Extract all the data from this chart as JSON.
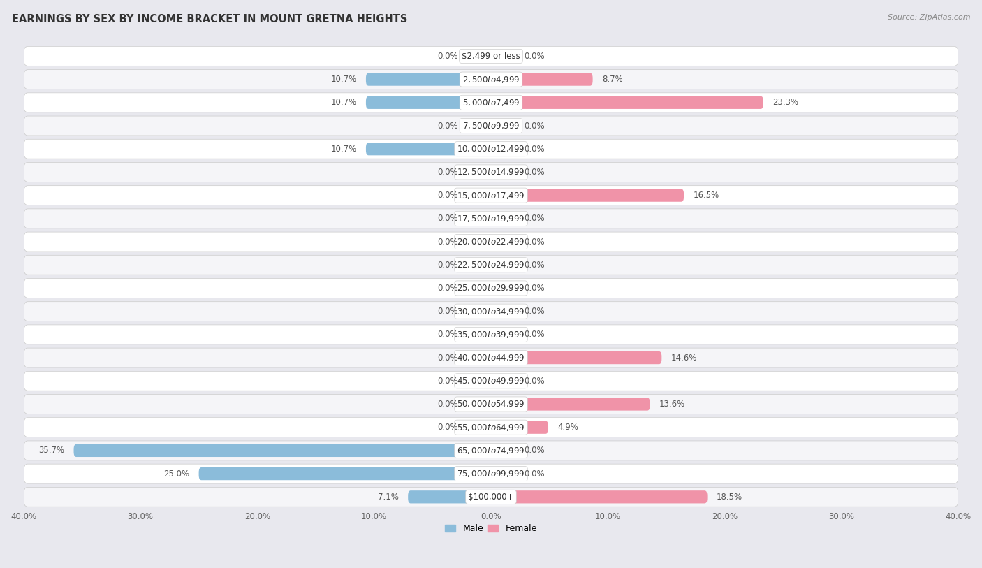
{
  "title": "EARNINGS BY SEX BY INCOME BRACKET IN MOUNT GRETNA HEIGHTS",
  "source": "Source: ZipAtlas.com",
  "categories": [
    "$2,499 or less",
    "$2,500 to $4,999",
    "$5,000 to $7,499",
    "$7,500 to $9,999",
    "$10,000 to $12,499",
    "$12,500 to $14,999",
    "$15,000 to $17,499",
    "$17,500 to $19,999",
    "$20,000 to $22,499",
    "$22,500 to $24,999",
    "$25,000 to $29,999",
    "$30,000 to $34,999",
    "$35,000 to $39,999",
    "$40,000 to $44,999",
    "$45,000 to $49,999",
    "$50,000 to $54,999",
    "$55,000 to $64,999",
    "$65,000 to $74,999",
    "$75,000 to $99,999",
    "$100,000+"
  ],
  "male_values": [
    0.0,
    10.7,
    10.7,
    0.0,
    10.7,
    0.0,
    0.0,
    0.0,
    0.0,
    0.0,
    0.0,
    0.0,
    0.0,
    0.0,
    0.0,
    0.0,
    0.0,
    35.7,
    25.0,
    7.1
  ],
  "female_values": [
    0.0,
    8.7,
    23.3,
    0.0,
    0.0,
    0.0,
    16.5,
    0.0,
    0.0,
    0.0,
    0.0,
    0.0,
    0.0,
    14.6,
    0.0,
    13.6,
    4.9,
    0.0,
    0.0,
    18.5
  ],
  "male_color": "#8bbcda",
  "female_color": "#f093a8",
  "male_color_light": "#b8d4e8",
  "female_color_light": "#f5bfca",
  "xlim": 40.0,
  "legend_male": "Male",
  "legend_female": "Female",
  "bg_color": "#e8e8ee",
  "row_color_even": "#f5f5f8",
  "row_color_odd": "#ffffff",
  "title_fontsize": 10.5,
  "label_fontsize": 8.5,
  "category_fontsize": 8.5,
  "axis_tick_fontsize": 8.5,
  "min_bar_display": 2.0
}
